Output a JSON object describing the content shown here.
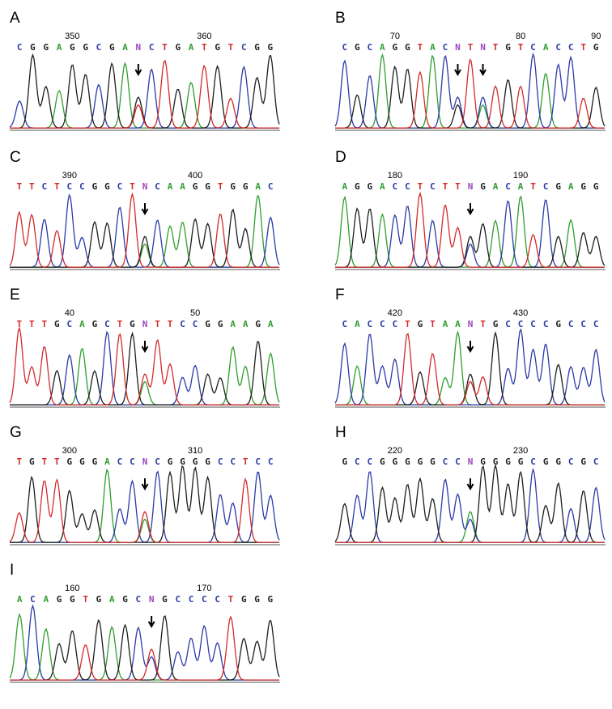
{
  "panels": [
    {
      "label": "A",
      "numbers": [
        "350",
        "360"
      ],
      "bases": [
        "C",
        "G",
        "G",
        "A",
        "G",
        "G",
        "C",
        "G",
        "A",
        "N",
        "C",
        "T",
        "G",
        "A",
        "T",
        "G",
        "T",
        "C",
        "G",
        "G"
      ]
    },
    {
      "label": "B",
      "numbers": [
        "70",
        "80",
        "90"
      ],
      "bases": [
        "C",
        "G",
        "C",
        "A",
        "G",
        "G",
        "T",
        "A",
        "C",
        "N",
        "T",
        "N",
        "T",
        "G",
        "T",
        "C",
        "A",
        "C",
        "C",
        "T",
        "G"
      ]
    },
    {
      "label": "C",
      "numbers": [
        "390",
        "400"
      ],
      "bases": [
        "T",
        "T",
        "C",
        "T",
        "C",
        "C",
        "G",
        "G",
        "C",
        "T",
        "N",
        "C",
        "A",
        "A",
        "G",
        "G",
        "T",
        "G",
        "G",
        "A",
        "C"
      ]
    },
    {
      "label": "D",
      "numbers": [
        "180",
        "190"
      ],
      "bases": [
        "A",
        "G",
        "G",
        "A",
        "C",
        "C",
        "T",
        "C",
        "T",
        "T",
        "N",
        "G",
        "A",
        "C",
        "A",
        "T",
        "C",
        "G",
        "A",
        "G",
        "G"
      ]
    },
    {
      "label": "E",
      "numbers": [
        "40",
        "50"
      ],
      "bases": [
        "T",
        "T",
        "T",
        "G",
        "C",
        "A",
        "G",
        "C",
        "T",
        "G",
        "N",
        "T",
        "T",
        "C",
        "C",
        "G",
        "G",
        "A",
        "A",
        "G",
        "A"
      ]
    },
    {
      "label": "F",
      "numbers": [
        "420",
        "430"
      ],
      "bases": [
        "C",
        "A",
        "C",
        "C",
        "C",
        "T",
        "G",
        "T",
        "A",
        "A",
        "N",
        "T",
        "G",
        "C",
        "C",
        "C",
        "C",
        "G",
        "C",
        "C",
        "C"
      ]
    },
    {
      "label": "G",
      "numbers": [
        "300",
        "310"
      ],
      "bases": [
        "T",
        "G",
        "T",
        "T",
        "G",
        "G",
        "G",
        "A",
        "C",
        "C",
        "N",
        "C",
        "G",
        "G",
        "G",
        "G",
        "C",
        "C",
        "T",
        "C",
        "C"
      ]
    },
    {
      "label": "H",
      "numbers": [
        "220",
        "230"
      ],
      "bases": [
        "G",
        "C",
        "C",
        "G",
        "G",
        "G",
        "G",
        "G",
        "C",
        "C",
        "N",
        "G",
        "G",
        "G",
        "G",
        "C",
        "G",
        "G",
        "C",
        "G",
        "C"
      ]
    },
    {
      "label": "I",
      "numbers": [
        "160",
        "170"
      ],
      "bases": [
        "A",
        "C",
        "A",
        "G",
        "G",
        "T",
        "G",
        "A",
        "G",
        "C",
        "N",
        "G",
        "C",
        "C",
        "C",
        "C",
        "T",
        "G",
        "G",
        "G"
      ]
    }
  ]
}
